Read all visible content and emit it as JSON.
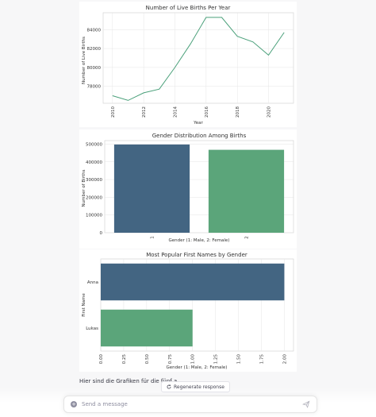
{
  "charts": {
    "births_per_year": {
      "title": "Number of Live Births Per Year",
      "xlabel": "Year",
      "ylabel": "Number of Live Births"
    },
    "gender_distribution": {
      "title": "Gender Distribution Among Births",
      "xlabel": "Gender (1: Male, 2: Female)",
      "ylabel": "Number of Births"
    },
    "popular_names": {
      "title": "Most Popular First Names by Gender",
      "xlabel": "Gender (1: Male, 2: Female)",
      "ylabel": "First Name"
    }
  },
  "chart_data": [
    {
      "type": "line",
      "title": "Number of Live Births Per Year",
      "xlabel": "Year",
      "ylabel": "Number of Live Births",
      "x": [
        2010,
        2011,
        2012,
        2013,
        2014,
        2015,
        2016,
        2017,
        2018,
        2019,
        2020,
        2021
      ],
      "y": [
        77000,
        76500,
        77300,
        77700,
        80000,
        82500,
        85300,
        85300,
        83300,
        82700,
        81300,
        83700
      ],
      "x_ticks": [
        "2010",
        "2012",
        "2014",
        "2016",
        "2018",
        "2020"
      ],
      "y_ticks": [
        "78000",
        "80000",
        "82000",
        "84000"
      ],
      "xlim": [
        2009.4,
        2021.6
      ],
      "ylim": [
        76200,
        85800
      ],
      "color": "#4aa07a",
      "grid": true
    },
    {
      "type": "bar",
      "title": "Gender Distribution Among Births",
      "xlabel": "Gender (1: Male, 2: Female)",
      "ylabel": "Number of Births",
      "categories": [
        "1",
        "2"
      ],
      "values": [
        498000,
        468000
      ],
      "y_ticks": [
        "0",
        "100000",
        "200000",
        "300000",
        "400000",
        "500000"
      ],
      "ylim": [
        0,
        520000
      ],
      "colors": [
        "#436582",
        "#5ba57a"
      ],
      "grid": true
    },
    {
      "type": "bar",
      "orientation": "horizontal",
      "title": "Most Popular First Names by Gender",
      "xlabel": "Gender (1: Male, 2: Female)",
      "ylabel": "First Name",
      "categories": [
        "Anna",
        "Lukas"
      ],
      "values": [
        2.0,
        1.0
      ],
      "x_ticks": [
        "0.00",
        "0.25",
        "0.50",
        "0.75",
        "1.00",
        "1.25",
        "1.50",
        "1.75",
        "2.00"
      ],
      "xlim": [
        0,
        2.1
      ],
      "colors": [
        "#436582",
        "#5ba57a"
      ],
      "grid": true
    }
  ],
  "response": {
    "text": "Hier sind die Grafiken für die fünf a"
  },
  "regenerate": {
    "label": "Regenerate response",
    "icon": "refresh-icon"
  },
  "composer": {
    "placeholder": "Send a message",
    "value": "",
    "attach_icon": "plus-icon",
    "send_icon": "send-icon"
  }
}
